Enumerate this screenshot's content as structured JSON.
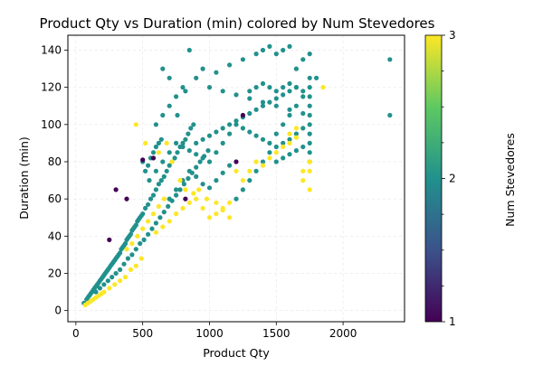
{
  "chart_data": {
    "type": "scatter",
    "title": "Product Qty vs Duration (min) colored by Num Stevedores",
    "xlabel": "Product Qty",
    "ylabel": "Duration (min)",
    "xlim": [
      -60,
      2460
    ],
    "ylim": [
      -6,
      148
    ],
    "xticks": [
      0,
      500,
      1000,
      1500,
      2000
    ],
    "yticks": [
      0,
      20,
      40,
      60,
      80,
      100,
      120,
      140
    ],
    "grid": true,
    "colorbar": {
      "label": "Num Stevedores",
      "range": [
        1,
        3
      ],
      "ticks": [
        1,
        2,
        3
      ],
      "colormap": [
        "#440154",
        "#3b528b",
        "#21918c",
        "#5ec962",
        "#fde725"
      ]
    },
    "series": [
      {
        "color_value": 2,
        "color": "#21918c",
        "points": [
          [
            60,
            4
          ],
          [
            80,
            6
          ],
          [
            100,
            8
          ],
          [
            120,
            10
          ],
          [
            140,
            12
          ],
          [
            160,
            14
          ],
          [
            180,
            16
          ],
          [
            200,
            18
          ],
          [
            220,
            20
          ],
          [
            240,
            22
          ],
          [
            260,
            24
          ],
          [
            280,
            26
          ],
          [
            300,
            28
          ],
          [
            320,
            30
          ],
          [
            340,
            33
          ],
          [
            360,
            35
          ],
          [
            380,
            38
          ],
          [
            400,
            40
          ],
          [
            420,
            43
          ],
          [
            440,
            45
          ],
          [
            460,
            48
          ],
          [
            480,
            50
          ],
          [
            500,
            52
          ],
          [
            520,
            55
          ],
          [
            540,
            57
          ],
          [
            560,
            60
          ],
          [
            580,
            62
          ],
          [
            600,
            65
          ],
          [
            620,
            68
          ],
          [
            640,
            70
          ],
          [
            660,
            72
          ],
          [
            680,
            75
          ],
          [
            700,
            78
          ],
          [
            720,
            80
          ],
          [
            740,
            82
          ],
          [
            760,
            85
          ],
          [
            780,
            88
          ],
          [
            800,
            90
          ],
          [
            820,
            92
          ],
          [
            840,
            95
          ],
          [
            860,
            98
          ],
          [
            880,
            100
          ],
          [
            900,
            90
          ],
          [
            950,
            92
          ],
          [
            1000,
            94
          ],
          [
            1050,
            96
          ],
          [
            1100,
            98
          ],
          [
            1150,
            100
          ],
          [
            1200,
            102
          ],
          [
            1250,
            104
          ],
          [
            1300,
            106
          ],
          [
            1350,
            108
          ],
          [
            1400,
            110
          ],
          [
            1450,
            112
          ],
          [
            1500,
            114
          ],
          [
            1550,
            116
          ],
          [
            1600,
            118
          ],
          [
            1650,
            120
          ],
          [
            90,
            7
          ],
          [
            110,
            9
          ],
          [
            130,
            11
          ],
          [
            150,
            13
          ],
          [
            170,
            15
          ],
          [
            190,
            17
          ],
          [
            210,
            19
          ],
          [
            230,
            21
          ],
          [
            250,
            23
          ],
          [
            270,
            25
          ],
          [
            290,
            27
          ],
          [
            310,
            29
          ],
          [
            330,
            31
          ],
          [
            350,
            34
          ],
          [
            370,
            36
          ],
          [
            390,
            39
          ],
          [
            410,
            41
          ],
          [
            430,
            44
          ],
          [
            450,
            46
          ],
          [
            470,
            49
          ],
          [
            490,
            51
          ],
          [
            150,
            10
          ],
          [
            180,
            12
          ],
          [
            210,
            14
          ],
          [
            240,
            16
          ],
          [
            270,
            18
          ],
          [
            300,
            20
          ],
          [
            330,
            22
          ],
          [
            360,
            25
          ],
          [
            390,
            28
          ],
          [
            420,
            30
          ],
          [
            450,
            33
          ],
          [
            480,
            36
          ],
          [
            510,
            38
          ],
          [
            540,
            41
          ],
          [
            570,
            44
          ],
          [
            600,
            47
          ],
          [
            630,
            50
          ],
          [
            660,
            53
          ],
          [
            690,
            56
          ],
          [
            720,
            59
          ],
          [
            750,
            62
          ],
          [
            780,
            65
          ],
          [
            810,
            68
          ],
          [
            840,
            71
          ],
          [
            870,
            74
          ],
          [
            900,
            77
          ],
          [
            930,
            80
          ],
          [
            960,
            83
          ],
          [
            990,
            86
          ],
          [
            550,
            70
          ],
          [
            600,
            75
          ],
          [
            650,
            80
          ],
          [
            700,
            85
          ],
          [
            750,
            90
          ],
          [
            800,
            88
          ],
          [
            850,
            86
          ],
          [
            900,
            84
          ],
          [
            950,
            82
          ],
          [
            1000,
            80
          ],
          [
            1050,
            85
          ],
          [
            1100,
            90
          ],
          [
            1150,
            95
          ],
          [
            1200,
            100
          ],
          [
            1250,
            98
          ],
          [
            1300,
            96
          ],
          [
            1350,
            94
          ],
          [
            1400,
            92
          ],
          [
            1450,
            90
          ],
          [
            1500,
            95
          ],
          [
            1550,
            100
          ],
          [
            1600,
            105
          ],
          [
            1650,
            110
          ],
          [
            1700,
            115
          ],
          [
            600,
            100
          ],
          [
            650,
            105
          ],
          [
            700,
            110
          ],
          [
            750,
            115
          ],
          [
            800,
            120
          ],
          [
            900,
            125
          ],
          [
            1000,
            120
          ],
          [
            1100,
            118
          ],
          [
            1200,
            116
          ],
          [
            1300,
            114
          ],
          [
            1400,
            112
          ],
          [
            1500,
            110
          ],
          [
            1600,
            108
          ],
          [
            1700,
            106
          ],
          [
            650,
            130
          ],
          [
            700,
            125
          ],
          [
            760,
            105
          ],
          [
            820,
            118
          ],
          [
            850,
            140
          ],
          [
            950,
            130
          ],
          [
            1050,
            128
          ],
          [
            1150,
            132
          ],
          [
            1250,
            135
          ],
          [
            1350,
            138
          ],
          [
            1400,
            140
          ],
          [
            1450,
            142
          ],
          [
            1500,
            138
          ],
          [
            1550,
            140
          ],
          [
            1600,
            142
          ],
          [
            1650,
            130
          ],
          [
            1700,
            135
          ],
          [
            1750,
            138
          ],
          [
            1800,
            125
          ],
          [
            1750,
            80
          ],
          [
            1750,
            85
          ],
          [
            1750,
            90
          ],
          [
            1750,
            95
          ],
          [
            1750,
            100
          ],
          [
            1750,
            105
          ],
          [
            1750,
            110
          ],
          [
            1750,
            115
          ],
          [
            1750,
            120
          ],
          [
            1750,
            125
          ],
          [
            1200,
            60
          ],
          [
            1250,
            65
          ],
          [
            1300,
            70
          ],
          [
            1350,
            75
          ],
          [
            1400,
            80
          ],
          [
            1450,
            85
          ],
          [
            1500,
            88
          ],
          [
            1550,
            90
          ],
          [
            1600,
            92
          ],
          [
            1650,
            95
          ],
          [
            1700,
            98
          ],
          [
            2350,
            135
          ],
          [
            2350,
            105
          ],
          [
            700,
            60
          ],
          [
            750,
            65
          ],
          [
            800,
            70
          ],
          [
            850,
            75
          ],
          [
            900,
            72
          ],
          [
            950,
            68
          ],
          [
            1000,
            66
          ],
          [
            1050,
            70
          ],
          [
            1100,
            74
          ],
          [
            1150,
            78
          ],
          [
            500,
            80
          ],
          [
            520,
            75
          ],
          [
            540,
            78
          ],
          [
            560,
            82
          ],
          [
            580,
            85
          ],
          [
            600,
            88
          ],
          [
            620,
            90
          ],
          [
            640,
            92
          ],
          [
            1300,
            118
          ],
          [
            1350,
            120
          ],
          [
            1400,
            122
          ],
          [
            1450,
            120
          ],
          [
            1500,
            118
          ],
          [
            1550,
            120
          ],
          [
            1600,
            122
          ],
          [
            1650,
            120
          ],
          [
            1700,
            118
          ],
          [
            1500,
            80
          ],
          [
            1550,
            82
          ],
          [
            1600,
            84
          ],
          [
            1650,
            86
          ],
          [
            1700,
            88
          ]
        ]
      },
      {
        "color_value": 3,
        "color": "#fde725",
        "points": [
          [
            70,
            3
          ],
          [
            90,
            4
          ],
          [
            110,
            5
          ],
          [
            130,
            6
          ],
          [
            150,
            7
          ],
          [
            170,
            8
          ],
          [
            190,
            9
          ],
          [
            210,
            10
          ],
          [
            250,
            12
          ],
          [
            290,
            14
          ],
          [
            330,
            16
          ],
          [
            370,
            18
          ],
          [
            410,
            22
          ],
          [
            450,
            24
          ],
          [
            490,
            28
          ],
          [
            380,
            33
          ],
          [
            420,
            36
          ],
          [
            460,
            40
          ],
          [
            500,
            44
          ],
          [
            540,
            48
          ],
          [
            580,
            52
          ],
          [
            620,
            56
          ],
          [
            660,
            60
          ],
          [
            450,
            100
          ],
          [
            520,
            90
          ],
          [
            620,
            85
          ],
          [
            680,
            90
          ],
          [
            720,
            80
          ],
          [
            780,
            70
          ],
          [
            820,
            65
          ],
          [
            880,
            63
          ],
          [
            920,
            65
          ],
          [
            980,
            60
          ],
          [
            1050,
            58
          ],
          [
            1100,
            55
          ],
          [
            1150,
            58
          ],
          [
            1200,
            75
          ],
          [
            1250,
            70
          ],
          [
            1300,
            75
          ],
          [
            1350,
            80
          ],
          [
            1400,
            78
          ],
          [
            1450,
            82
          ],
          [
            1500,
            85
          ],
          [
            1550,
            88
          ],
          [
            1600,
            90
          ],
          [
            1650,
            93
          ],
          [
            1700,
            70
          ],
          [
            1750,
            75
          ],
          [
            1850,
            120
          ],
          [
            600,
            42
          ],
          [
            650,
            45
          ],
          [
            700,
            48
          ],
          [
            750,
            52
          ],
          [
            800,
            55
          ],
          [
            850,
            58
          ],
          [
            900,
            60
          ],
          [
            950,
            55
          ],
          [
            1000,
            50
          ],
          [
            1050,
            52
          ],
          [
            1100,
            54
          ],
          [
            1150,
            50
          ],
          [
            1600,
            95
          ],
          [
            1650,
            98
          ],
          [
            1700,
            75
          ],
          [
            1750,
            80
          ],
          [
            1750,
            65
          ]
        ]
      },
      {
        "color_value": 1,
        "color": "#440154",
        "points": [
          [
            250,
            38
          ],
          [
            300,
            65
          ],
          [
            380,
            60
          ],
          [
            500,
            81
          ],
          [
            580,
            82
          ],
          [
            820,
            60
          ],
          [
            1200,
            80
          ],
          [
            1250,
            105
          ]
        ]
      }
    ]
  }
}
